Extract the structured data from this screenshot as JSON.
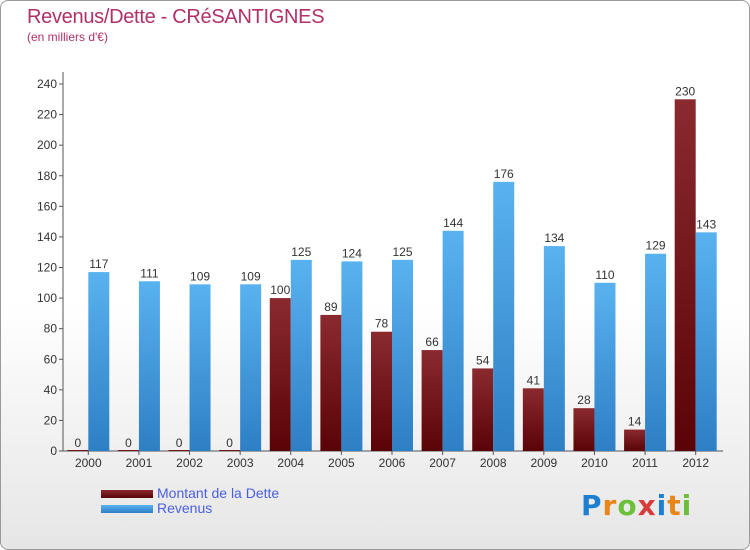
{
  "header": {
    "title": "Revenus/Dette - CRéSANTIGNES",
    "subtitle": "(en milliers d'€)"
  },
  "legend": {
    "items": [
      {
        "label": "Montant de la Dette",
        "color": "#6b0f14"
      },
      {
        "label": "Revenus",
        "color": "#4ca3e6"
      }
    ]
  },
  "logo": {
    "letters": [
      "P",
      "r",
      "o",
      "x",
      "i",
      "t",
      "i"
    ],
    "colors": [
      "#1e7fd0",
      "#e8861a",
      "#6bbf3a",
      "#d93a3a",
      "#1e7fd0",
      "#e8861a",
      "#6bbf3a"
    ]
  },
  "chart_data": {
    "type": "bar",
    "title": "Revenus/Dette - CRéSANTIGNES",
    "subtitle": "(en milliers d'€)",
    "categories": [
      "2000",
      "2001",
      "2002",
      "2003",
      "2004",
      "2005",
      "2006",
      "2007",
      "2008",
      "2009",
      "2010",
      "2011",
      "2012"
    ],
    "series": [
      {
        "name": "Montant de la Dette",
        "color": "#6b0f14",
        "values": [
          0,
          0,
          0,
          0,
          100,
          89,
          78,
          66,
          54,
          41,
          28,
          14,
          230
        ]
      },
      {
        "name": "Revenus",
        "color": "#4ca3e6",
        "values": [
          117,
          111,
          109,
          109,
          125,
          124,
          125,
          144,
          176,
          134,
          110,
          129,
          143
        ]
      }
    ],
    "ylim": [
      0,
      240
    ],
    "yticks": [
      0,
      20,
      40,
      60,
      80,
      100,
      120,
      140,
      160,
      180,
      200,
      220,
      240
    ],
    "grid": false,
    "legend_position": "bottom-left"
  }
}
